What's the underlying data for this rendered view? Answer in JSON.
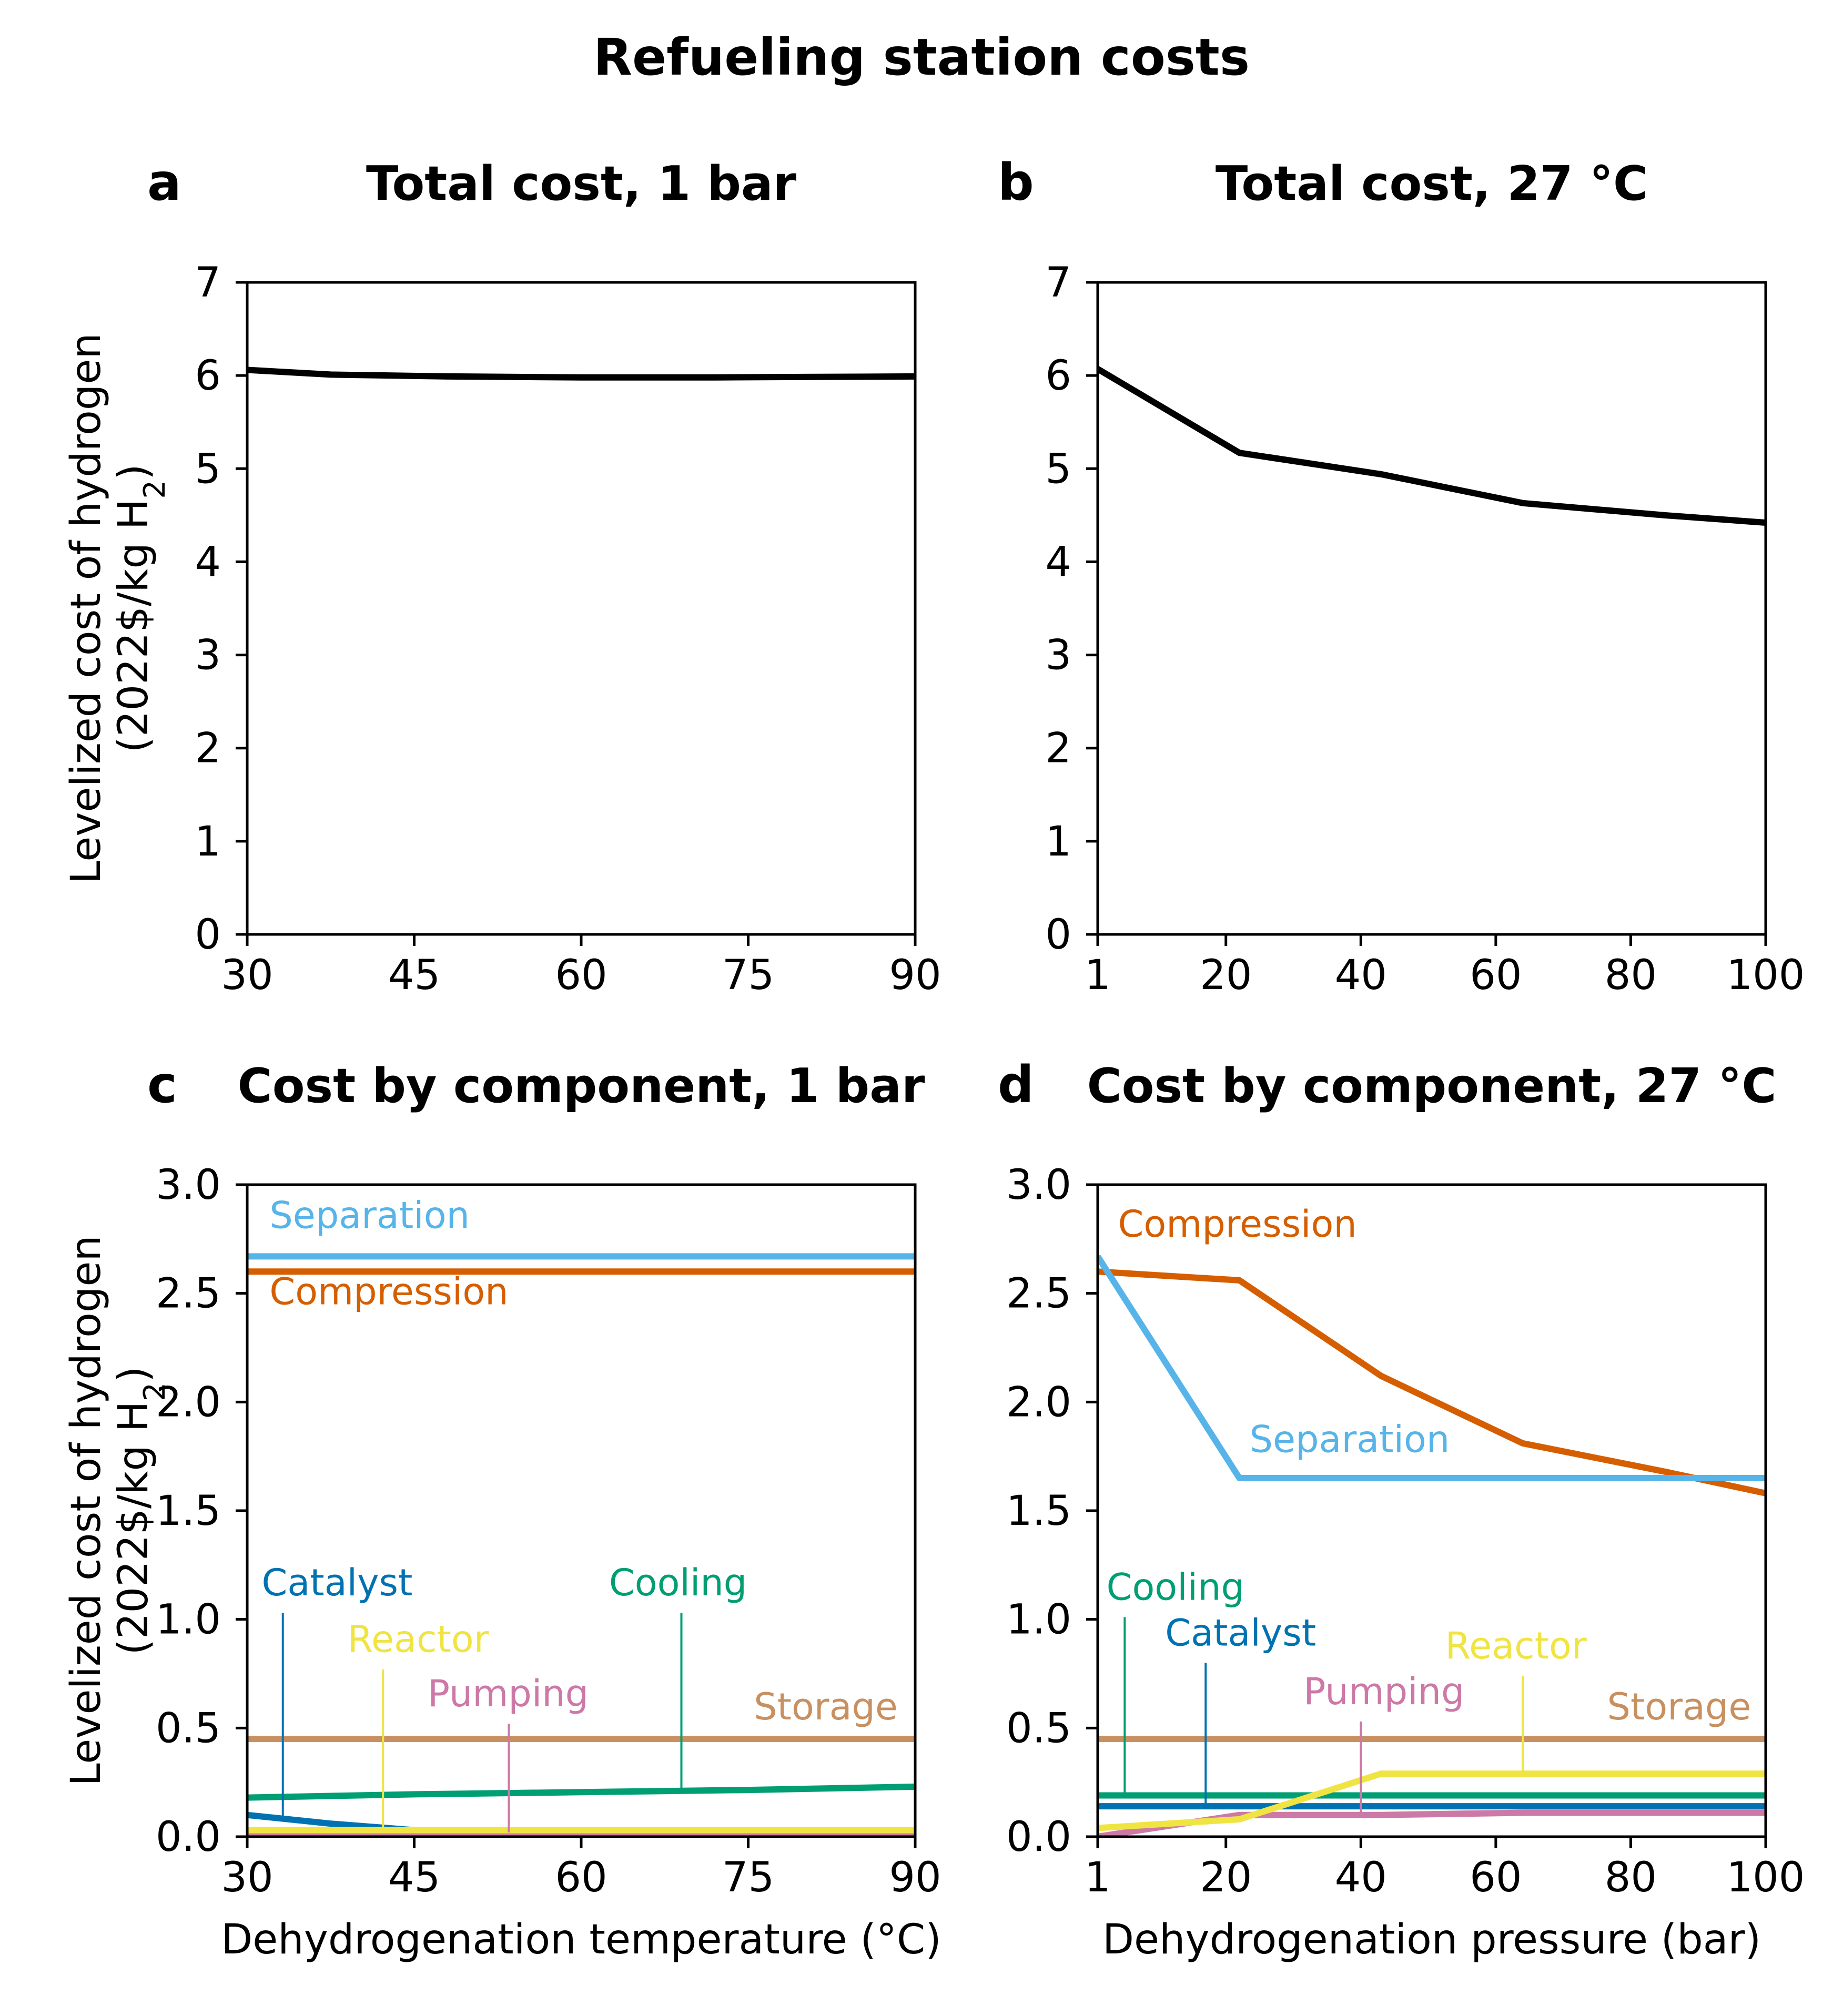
{
  "title": "Refueling station costs",
  "colors": {
    "total": "#000000",
    "Separation": "#56b4e9",
    "Compression": "#d55e00",
    "Storage": "#c89060",
    "Cooling": "#009e73",
    "Catalyst": "#0072b2",
    "Reactor": "#f0e442",
    "Pumping": "#cc79a7"
  },
  "chart_data": [
    {
      "panel": "a",
      "type": "line",
      "title": "Total cost, 1 bar",
      "xlabel": "",
      "ylabel": "Levelized cost of hydrogen",
      "ylabel_line2": "(2022$/kg H",
      "ylabel_sub": "2",
      "ylabel_close": ")",
      "xlim": [
        30,
        90
      ],
      "ylim": [
        0,
        7
      ],
      "xticks": [
        "30",
        "45",
        "60",
        "75",
        "90"
      ],
      "yticks": [
        "0",
        "1",
        "2",
        "3",
        "4",
        "5",
        "6",
        "7"
      ],
      "grid": false,
      "series": [
        {
          "key": "total",
          "x": [
            30,
            37.5,
            48,
            60,
            72,
            90
          ],
          "y": [
            6.06,
            6.01,
            5.99,
            5.98,
            5.98,
            5.99
          ]
        }
      ],
      "annotations": []
    },
    {
      "panel": "b",
      "type": "line",
      "title": "Total cost, 27 °C",
      "xlabel": "",
      "ylabel": "",
      "xlim": [
        1,
        100
      ],
      "ylim": [
        0,
        7
      ],
      "xticks": [
        "1",
        "20",
        "40",
        "60",
        "80",
        "100"
      ],
      "xtick_values": [
        1,
        20,
        40,
        60,
        80,
        100
      ],
      "yticks": [
        "0",
        "1",
        "2",
        "3",
        "4",
        "5",
        "6",
        "7"
      ],
      "grid": false,
      "series": [
        {
          "key": "total",
          "x": [
            1,
            22,
            43,
            64,
            85,
            100
          ],
          "y": [
            6.07,
            5.17,
            4.94,
            4.63,
            4.5,
            4.42
          ]
        }
      ],
      "annotations": []
    },
    {
      "panel": "c",
      "type": "line",
      "title": "Cost by component, 1 bar",
      "xlabel": "Dehydrogenation temperature (°C)",
      "ylabel": "Levelized cost of hydrogen",
      "ylabel_line2": "(2022$/kg H",
      "ylabel_sub": "2",
      "ylabel_close": ")",
      "xlim": [
        30,
        90
      ],
      "ylim": [
        0,
        3
      ],
      "xticks": [
        "30",
        "45",
        "60",
        "75",
        "90"
      ],
      "yticks": [
        "0.0",
        "0.5",
        "1.0",
        "1.5",
        "2.0",
        "2.5",
        "3.0"
      ],
      "grid": false,
      "series": [
        {
          "key": "Separation",
          "x": [
            30,
            90
          ],
          "y": [
            2.67,
            2.67
          ]
        },
        {
          "key": "Compression",
          "x": [
            30,
            90
          ],
          "y": [
            2.6,
            2.6
          ]
        },
        {
          "key": "Storage",
          "x": [
            30,
            90
          ],
          "y": [
            0.45,
            0.45
          ]
        },
        {
          "key": "Cooling",
          "x": [
            30,
            45,
            60,
            75,
            90
          ],
          "y": [
            0.18,
            0.195,
            0.205,
            0.215,
            0.23
          ]
        },
        {
          "key": "Catalyst",
          "x": [
            30,
            37.5,
            45,
            60,
            90
          ],
          "y": [
            0.1,
            0.06,
            0.03,
            0.025,
            0.025
          ]
        },
        {
          "key": "Pumping",
          "x": [
            30,
            90
          ],
          "y": [
            0.02,
            0.02
          ]
        },
        {
          "key": "Reactor",
          "x": [
            30,
            90
          ],
          "y": [
            0.03,
            0.03
          ]
        }
      ],
      "annotations": [
        {
          "label": "Separation",
          "key": "Separation",
          "tx": 32,
          "ty": 2.8
        },
        {
          "label": "Compression",
          "key": "Compression",
          "tx": 32,
          "ty": 2.45
        },
        {
          "label": "Storage",
          "key": "Storage",
          "tx": 75.5,
          "ty": 0.54
        },
        {
          "label": "Catalyst",
          "key": "Catalyst",
          "tx": 31.3,
          "ty": 1.11,
          "lx": 33.2,
          "ly0": 1.03,
          "ly1": 0.08
        },
        {
          "label": "Cooling",
          "key": "Cooling",
          "tx": 62.5,
          "ty": 1.11,
          "lx": 69,
          "ly0": 1.03,
          "ly1": 0.22
        },
        {
          "label": "Reactor",
          "key": "Reactor",
          "tx": 39,
          "ty": 0.85,
          "lx": 42.2,
          "ly0": 0.77,
          "ly1": 0.03
        },
        {
          "label": "Pumping",
          "key": "Pumping",
          "tx": 46.2,
          "ty": 0.6,
          "lx": 53.5,
          "ly0": 0.52,
          "ly1": 0.02
        }
      ]
    },
    {
      "panel": "d",
      "type": "line",
      "title": "Cost by component, 27 °C",
      "xlabel": "Dehydrogenation pressure (bar)",
      "ylabel": "",
      "xlim": [
        1,
        100
      ],
      "ylim": [
        0,
        3
      ],
      "xticks": [
        "1",
        "20",
        "40",
        "60",
        "80",
        "100"
      ],
      "xtick_values": [
        1,
        20,
        40,
        60,
        80,
        100
      ],
      "yticks": [
        "0.0",
        "0.5",
        "1.0",
        "1.5",
        "2.0",
        "2.5",
        "3.0"
      ],
      "grid": false,
      "series": [
        {
          "key": "Compression",
          "x": [
            1,
            22,
            43,
            64,
            85,
            100
          ],
          "y": [
            2.6,
            2.56,
            2.12,
            1.81,
            1.68,
            1.58
          ]
        },
        {
          "key": "Separation",
          "x": [
            1,
            22,
            43,
            64,
            85,
            100
          ],
          "y": [
            2.67,
            1.65,
            1.65,
            1.65,
            1.65,
            1.65
          ]
        },
        {
          "key": "Storage",
          "x": [
            1,
            100
          ],
          "y": [
            0.45,
            0.45
          ]
        },
        {
          "key": "Cooling",
          "x": [
            1,
            100
          ],
          "y": [
            0.19,
            0.19
          ]
        },
        {
          "key": "Catalyst",
          "x": [
            1,
            100
          ],
          "y": [
            0.14,
            0.14
          ]
        },
        {
          "key": "Pumping",
          "x": [
            1,
            22,
            43,
            64,
            85,
            100
          ],
          "y": [
            0.0,
            0.1,
            0.1,
            0.11,
            0.11,
            0.11
          ]
        },
        {
          "key": "Reactor",
          "x": [
            1,
            22,
            43,
            64,
            85,
            100
          ],
          "y": [
            0.04,
            0.08,
            0.29,
            0.29,
            0.29,
            0.29
          ]
        }
      ],
      "annotations": [
        {
          "label": "Compression",
          "key": "Compression",
          "tx": 4,
          "ty": 2.76
        },
        {
          "label": "Separation",
          "key": "Separation",
          "tx": 23.5,
          "ty": 1.77
        },
        {
          "label": "Storage",
          "key": "Storage",
          "tx": 76.5,
          "ty": 0.54
        },
        {
          "label": "Cooling",
          "key": "Cooling",
          "tx": 2.3,
          "ty": 1.09,
          "lx": 5,
          "ly0": 1.01,
          "ly1": 0.19
        },
        {
          "label": "Catalyst",
          "key": "Catalyst",
          "tx": 11,
          "ty": 0.88,
          "lx": 17,
          "ly0": 0.8,
          "ly1": 0.14
        },
        {
          "label": "Reactor",
          "key": "Reactor",
          "tx": 52.5,
          "ty": 0.82,
          "lx": 64,
          "ly0": 0.74,
          "ly1": 0.29
        },
        {
          "label": "Pumping",
          "key": "Pumping",
          "tx": 31.5,
          "ty": 0.61,
          "lx": 40,
          "ly0": 0.53,
          "ly1": 0.1
        }
      ]
    }
  ]
}
